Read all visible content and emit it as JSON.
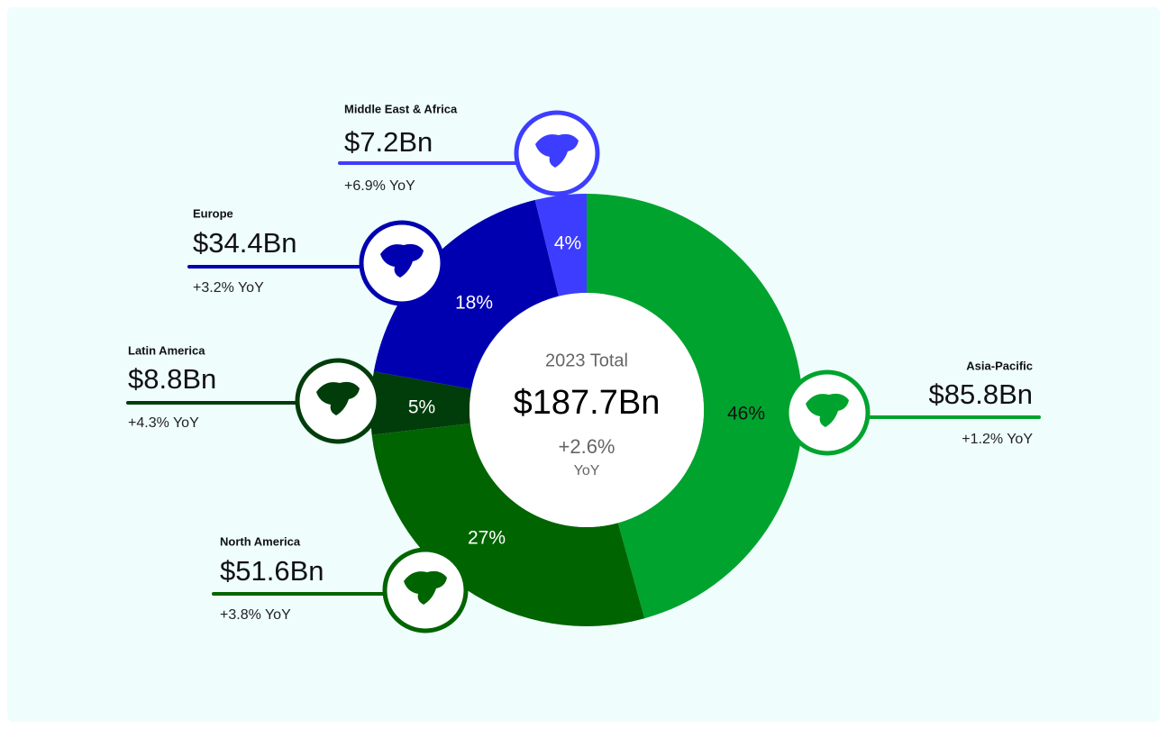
{
  "chart_data": {
    "type": "donut",
    "categories": [
      "Asia-Pacific",
      "North America",
      "Latin America",
      "Europe",
      "Middle East & Africa"
    ],
    "values": [
      85.8,
      51.6,
      8.8,
      34.4,
      7.2
    ],
    "value_labels": [
      "$85.8Bn",
      "$51.6Bn",
      "$8.8Bn",
      "$34.4Bn",
      "$7.2Bn"
    ],
    "shares": [
      46,
      27,
      5,
      18,
      4
    ],
    "share_labels": [
      "46%",
      "27%",
      "5%",
      "18%",
      "4%"
    ],
    "yoy_labels": [
      "+1.2% YoY",
      "+3.8% YoY",
      "+4.3% YoY",
      "+3.2% YoY",
      "+6.9% YoY"
    ],
    "colors": [
      "#00a32e",
      "#006400",
      "#003d0b",
      "#0000b0",
      "#3d3dff"
    ],
    "center": {
      "title": "2023 Total",
      "total": "$187.7Bn",
      "growth": "+2.6%",
      "growth_unit": "YoY"
    }
  }
}
